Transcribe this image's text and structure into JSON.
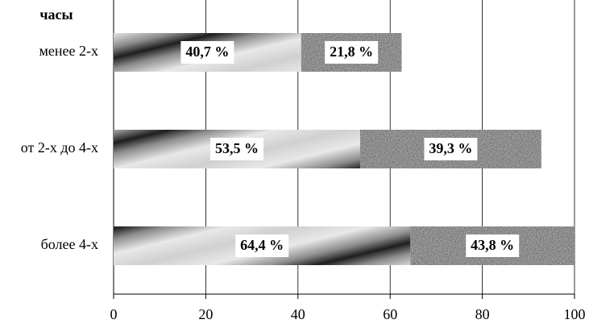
{
  "chart_data": {
    "type": "bar",
    "orientation": "horizontal",
    "stacked": true,
    "y_title": "часы",
    "categories": [
      "менее 2-х",
      "от 2-х до 4-х",
      "более 4-х"
    ],
    "series": [
      {
        "color": "#8c8c8c",
        "pattern": "gradient-stripes",
        "values": [
          40.7,
          53.5,
          64.4
        ],
        "value_labels": [
          "40,7 %",
          "53,5 %",
          "64,4 %"
        ]
      },
      {
        "color": "#a8a8a8",
        "pattern": "speckle",
        "values": [
          21.8,
          39.3,
          43.8
        ],
        "value_labels": [
          "21,8 %",
          "39,3 %",
          "43,8 %"
        ]
      }
    ],
    "xlim": [
      0,
      100
    ],
    "xticks": [
      0,
      20,
      40,
      60,
      80,
      100
    ],
    "grid": true
  }
}
